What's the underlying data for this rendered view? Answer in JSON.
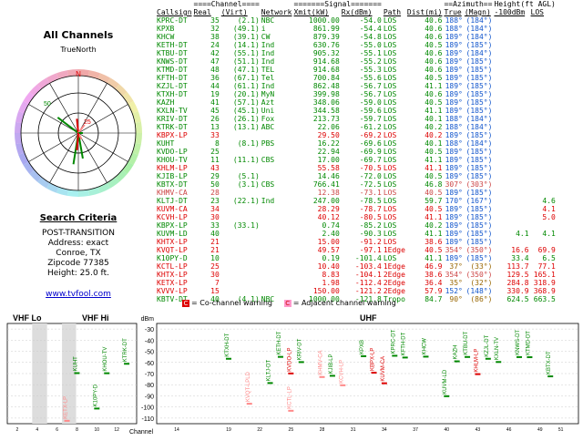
{
  "left": {
    "title": "All Channels",
    "compass_label": "TrueNorth",
    "north": "N",
    "ring_labels": [
      "50",
      "25"
    ],
    "search_title": "Search Criteria",
    "criteria": [
      "POST-TRANSITION",
      "Address: exact",
      "Conroe, TX",
      "Zipcode 77385",
      "Height: 25.0 ft."
    ],
    "link": "www.tvfool.com"
  },
  "table": {
    "group_headers": [
      "====Channel====",
      "=======Signal=======",
      "==Azimuth==",
      "Height(ft AGL)"
    ],
    "columns": [
      "Callsign",
      "Real",
      "(Virt)",
      "Network",
      "Xmit(kW)",
      "Rx(dBm)",
      "Path",
      "Dist(mi)",
      "True",
      "(Magn)",
      "-100dBm",
      "LOS"
    ],
    "rows": [
      {
        "c": "KPRC-DT",
        "r": "35",
        "v": "(2.1)",
        "n": "NBC",
        "x": "1000.00",
        "rx": "-54.0",
        "p": "LOS",
        "d": "40.6",
        "t": "188°",
        "m": "(184°)",
        "h1": "",
        "h2": "",
        "cls": "g"
      },
      {
        "c": "KPXB",
        "r": "32",
        "v": "(49.1)",
        "n": "i",
        "x": "861.99",
        "rx": "-54.4",
        "p": "LOS",
        "d": "40.6",
        "t": "188°",
        "m": "(184°)",
        "h1": "",
        "h2": "",
        "cls": "g"
      },
      {
        "c": "KHCW",
        "r": "38",
        "v": "(39.1)",
        "n": "CW",
        "x": "879.39",
        "rx": "-54.8",
        "p": "LOS",
        "d": "40.6",
        "t": "189°",
        "m": "(184°)",
        "h1": "",
        "h2": "",
        "cls": "g"
      },
      {
        "c": "KETH-DT",
        "r": "24",
        "v": "(14.1)",
        "n": "Ind",
        "x": "630.76",
        "rx": "-55.0",
        "p": "LOS",
        "d": "40.5",
        "t": "189°",
        "m": "(185°)",
        "h1": "",
        "h2": "",
        "cls": "g"
      },
      {
        "c": "KTBU-DT",
        "r": "42",
        "v": "(55.1)",
        "n": "Ind",
        "x": "905.32",
        "rx": "-55.1",
        "p": "LOS",
        "d": "40.6",
        "t": "189°",
        "m": "(184°)",
        "h1": "",
        "h2": "",
        "cls": "g"
      },
      {
        "c": "KNWS-DT",
        "r": "47",
        "v": "(51.1)",
        "n": "Ind",
        "x": "914.68",
        "rx": "-55.2",
        "p": "LOS",
        "d": "40.6",
        "t": "189°",
        "m": "(185°)",
        "h1": "",
        "h2": "",
        "cls": "g"
      },
      {
        "c": "KTMD-DT",
        "r": "48",
        "v": "(47.1)",
        "n": "TEL",
        "x": "914.68",
        "rx": "-55.3",
        "p": "LOS",
        "d": "40.6",
        "t": "189°",
        "m": "(185°)",
        "h1": "",
        "h2": "",
        "cls": "g"
      },
      {
        "c": "KFTH-DT",
        "r": "36",
        "v": "(67.1)",
        "n": "Tel",
        "x": "700.84",
        "rx": "-55.6",
        "p": "LOS",
        "d": "40.5",
        "t": "189°",
        "m": "(185°)",
        "h1": "",
        "h2": "",
        "cls": "g"
      },
      {
        "c": "KZJL-DT",
        "r": "44",
        "v": "(61.1)",
        "n": "Ind",
        "x": "862.48",
        "rx": "-56.7",
        "p": "LOS",
        "d": "41.1",
        "t": "189°",
        "m": "(185°)",
        "h1": "",
        "h2": "",
        "cls": "g"
      },
      {
        "c": "KTXH-DT",
        "r": "19",
        "v": "(20.1)",
        "n": "MyN",
        "x": "399.98",
        "rx": "-56.7",
        "p": "LOS",
        "d": "40.6",
        "t": "189°",
        "m": "(185°)",
        "h1": "",
        "h2": "",
        "cls": "g"
      },
      {
        "c": "KAZH",
        "r": "41",
        "v": "(57.1)",
        "n": "Azt",
        "x": "348.06",
        "rx": "-59.0",
        "p": "LOS",
        "d": "40.5",
        "t": "189°",
        "m": "(185°)",
        "h1": "",
        "h2": "",
        "cls": "g"
      },
      {
        "c": "KXLN-TV",
        "r": "45",
        "v": "(45.1)",
        "n": "Uni",
        "x": "344.58",
        "rx": "-59.6",
        "p": "LOS",
        "d": "41.1",
        "t": "189°",
        "m": "(185°)",
        "h1": "",
        "h2": "",
        "cls": "g"
      },
      {
        "c": "KRIV-DT",
        "r": "26",
        "v": "(26.1)",
        "n": "Fox",
        "x": "213.73",
        "rx": "-59.7",
        "p": "LOS",
        "d": "40.1",
        "t": "188°",
        "m": "(184°)",
        "h1": "",
        "h2": "",
        "cls": "g"
      },
      {
        "c": "KTRK-DT",
        "r": "13",
        "v": "(13.1)",
        "n": "ABC",
        "x": "22.06",
        "rx": "-61.2",
        "p": "LOS",
        "d": "40.2",
        "t": "188°",
        "m": "(184°)",
        "h1": "",
        "h2": "",
        "cls": "g"
      },
      {
        "c": "KBPX-LP",
        "r": "33",
        "v": "",
        "n": "",
        "x": "29.50",
        "rx": "-69.2",
        "p": "LOS",
        "d": "40.2",
        "t": "189°",
        "m": "(185°)",
        "h1": "",
        "h2": "",
        "cls": "rd"
      },
      {
        "c": "KUHT",
        "r": "8",
        "v": "(8.1)",
        "n": "PBS",
        "x": "16.22",
        "rx": "-69.6",
        "p": "LOS",
        "d": "40.1",
        "t": "188°",
        "m": "(184°)",
        "h1": "",
        "h2": "",
        "cls": "g"
      },
      {
        "c": "KVDO-LP",
        "r": "25",
        "v": "",
        "n": "",
        "x": "22.94",
        "rx": "-69.9",
        "p": "LOS",
        "d": "40.5",
        "t": "189°",
        "m": "(185°)",
        "h1": "",
        "h2": "",
        "cls": "g"
      },
      {
        "c": "KHOU-TV",
        "r": "11",
        "v": "(11.1)",
        "n": "CBS",
        "x": "17.00",
        "rx": "-69.7",
        "p": "LOS",
        "d": "41.1",
        "t": "189°",
        "m": "(185°)",
        "h1": "",
        "h2": "",
        "cls": "g"
      },
      {
        "c": "KHLM-LP",
        "r": "43",
        "v": "",
        "n": "",
        "x": "55.58",
        "rx": "-70.5",
        "p": "LOS",
        "d": "41.1",
        "t": "189°",
        "m": "(185°)",
        "h1": "",
        "h2": "",
        "cls": "rd"
      },
      {
        "c": "KJIB-LP",
        "r": "29",
        "v": "(5.1)",
        "n": "",
        "x": "14.46",
        "rx": "-72.0",
        "p": "LOS",
        "d": "40.5",
        "t": "189°",
        "m": "(185°)",
        "h1": "",
        "h2": "",
        "cls": "g"
      },
      {
        "c": "KBTX-DT",
        "r": "50",
        "v": "(3.1)",
        "n": "CBS",
        "x": "766.41",
        "rx": "-72.5",
        "p": "LOS",
        "d": "46.8",
        "t": "307°",
        "m": "(303°)",
        "h1": "",
        "h2": "",
        "cls": "g",
        "az": "pk"
      },
      {
        "c": "KHMV-CA",
        "r": "28",
        "v": "",
        "n": "",
        "x": "12.38",
        "rx": "-73.1",
        "p": "LOS",
        "d": "40.5",
        "t": "189°",
        "m": "(185°)",
        "h1": "",
        "h2": "",
        "cls": "pk"
      },
      {
        "c": "KLTJ-DT",
        "r": "23",
        "v": "(22.1)",
        "n": "Ind",
        "x": "247.00",
        "rx": "-78.5",
        "p": "LOS",
        "d": "59.7",
        "t": "170°",
        "m": "(167°)",
        "h1": "",
        "h2": "4.6",
        "cls": "g"
      },
      {
        "c": "KUVM-CA",
        "r": "34",
        "v": "",
        "n": "",
        "x": "28.29",
        "rx": "-78.7",
        "p": "LOS",
        "d": "40.5",
        "t": "189°",
        "m": "(185°)",
        "h1": "",
        "h2": "4.1",
        "cls": "rd",
        "flag": "C"
      },
      {
        "c": "KCVH-LP",
        "r": "30",
        "v": "",
        "n": "",
        "x": "40.12",
        "rx": "-80.5",
        "p": "LOS",
        "d": "41.1",
        "t": "189°",
        "m": "(185°)",
        "h1": "",
        "h2": "5.0",
        "cls": "rd",
        "flag": "C"
      },
      {
        "c": "KBPX-LP",
        "r": "33",
        "v": "(33.1)",
        "n": "",
        "x": "0.74",
        "rx": "-85.2",
        "p": "LOS",
        "d": "40.2",
        "t": "189°",
        "m": "(185°)",
        "h1": "",
        "h2": "",
        "cls": "g"
      },
      {
        "c": "KUVM-LD",
        "r": "40",
        "v": "",
        "n": "",
        "x": "2.40",
        "rx": "-90.3",
        "p": "LOS",
        "d": "41.1",
        "t": "189°",
        "m": "(185°)",
        "h1": "4.1",
        "h2": "4.1",
        "cls": "g"
      },
      {
        "c": "KHTX-LP",
        "r": "21",
        "v": "",
        "n": "",
        "x": "15.00",
        "rx": "-91.2",
        "p": "LOS",
        "d": "38.6",
        "t": "189°",
        "m": "(185°)",
        "h1": "",
        "h2": "",
        "cls": "rd",
        "flag": "C"
      },
      {
        "c": "KVQT-LP",
        "r": "21",
        "v": "",
        "n": "",
        "x": "49.57",
        "rx": "-97.1",
        "p": "1Edge",
        "d": "40.5",
        "t": "354°",
        "m": "(350°)",
        "h1": "16.6",
        "h2": "69.9",
        "cls": "rd",
        "flag": "C",
        "az": "pk"
      },
      {
        "c": "K10PY-D",
        "r": "10",
        "v": "",
        "n": "",
        "x": "0.19",
        "rx": "-101.4",
        "p": "LOS",
        "d": "41.1",
        "t": "189°",
        "m": "(185°)",
        "h1": "33.4",
        "h2": "6.5",
        "cls": "g"
      },
      {
        "c": "KCTL-LP",
        "r": "25",
        "v": "",
        "n": "",
        "x": "10.40",
        "rx": "-103.4",
        "p": "1Edge",
        "d": "46.9",
        "t": "37°",
        "m": "(33°)",
        "h1": "113.7",
        "h2": "77.1",
        "cls": "rd",
        "flag": "C",
        "az": "brn"
      },
      {
        "c": "KHTX-LP",
        "r": "30",
        "v": "",
        "n": "",
        "x": "8.83",
        "rx": "-104.1",
        "p": "2Edge",
        "d": "38.6",
        "t": "354°",
        "m": "(350°)",
        "h1": "129.5",
        "h2": "165.1",
        "cls": "rd",
        "flag": "C",
        "az": "pk"
      },
      {
        "c": "KETX-LP",
        "r": "7",
        "v": "",
        "n": "",
        "x": "1.98",
        "rx": "-112.4",
        "p": "2Edge",
        "d": "36.4",
        "t": "35°",
        "m": "(32°)",
        "h1": "284.8",
        "h2": "318.9",
        "cls": "rd",
        "flag": "C",
        "az": "brn"
      },
      {
        "c": "KVVV-LP",
        "r": "15",
        "v": "",
        "n": "",
        "x": "150.00",
        "rx": "-121.2",
        "p": "2Edge",
        "d": "57.9",
        "t": "152°",
        "m": "(148°)",
        "h1": "330.9",
        "h2": "368.9",
        "cls": "rd",
        "flag": "C"
      },
      {
        "c": "KBTV-DT",
        "r": "40",
        "v": "(4.1)",
        "n": "NBC",
        "x": "1000.00",
        "rx": "-121.8",
        "p": "Tropo",
        "d": "84.7",
        "t": "90°",
        "m": "(86°)",
        "h1": "624.5",
        "h2": "663.5",
        "cls": "g",
        "az": "brn"
      }
    ]
  },
  "legend": {
    "co": "= Co-channel warning",
    "adj": "= Adjacent channel warning",
    "co_box": "C",
    "adj_box": "C"
  },
  "bottom": {
    "vhf_lo": "VHF Lo",
    "vhf_hi": "VHF Hi",
    "uhf": "UHF",
    "dbm_label": "dBm",
    "channel_label": "Channel",
    "dbm_ticks": [
      "-30",
      "-40",
      "-50",
      "-60",
      "-70",
      "-80",
      "-90",
      "-100",
      "-110"
    ],
    "vhf_ticks": [
      "2",
      "4",
      "6",
      "8",
      "10",
      "12"
    ],
    "uhf_ticks": [
      "14",
      "19",
      "22",
      "25",
      "28",
      "31",
      "34",
      "37",
      "40",
      "43",
      "46",
      "49",
      "51"
    ],
    "bars": [
      {
        "label": "KETX-LP",
        "ch": 7,
        "dbm": -112.4,
        "color": "#f88",
        "band": "vhf"
      },
      {
        "label": "KUHT",
        "ch": 8,
        "dbm": -69.6,
        "color": "#080",
        "band": "vhf"
      },
      {
        "label": "K10PY-D",
        "ch": 10,
        "dbm": -101.4,
        "color": "#080",
        "band": "vhf"
      },
      {
        "label": "KHOU-TV",
        "ch": 11,
        "dbm": -69.7,
        "color": "#080",
        "band": "vhf"
      },
      {
        "label": "KTRK-DT",
        "ch": 13,
        "dbm": -61.2,
        "color": "#080",
        "band": "vhf"
      },
      {
        "label": "KTXH-DT",
        "ch": 19,
        "dbm": -56.7,
        "color": "#080",
        "band": "uhf"
      },
      {
        "label": "KVQT-LPLD",
        "ch": 21,
        "dbm": -97.1,
        "color": "#f88",
        "band": "uhf"
      },
      {
        "label": "KLTJ-DT",
        "ch": 23,
        "dbm": -78.5,
        "color": "#080",
        "band": "uhf"
      },
      {
        "label": "KETH-DT",
        "ch": 24,
        "dbm": -55.0,
        "color": "#080",
        "band": "uhf"
      },
      {
        "label": "KVDO-LP",
        "ch": 25,
        "dbm": -69.9,
        "color": "#d00",
        "band": "uhf"
      },
      {
        "label": "KCTL-LP",
        "ch": 25,
        "dbm": -103.4,
        "color": "#f88",
        "band": "uhf"
      },
      {
        "label": "KRIV-DT",
        "ch": 26,
        "dbm": -59.7,
        "color": "#080",
        "band": "uhf"
      },
      {
        "label": "KHMV-CA",
        "ch": 28,
        "dbm": -73.1,
        "color": "#f88",
        "band": "uhf"
      },
      {
        "label": "KJIB-LP",
        "ch": 29,
        "dbm": -72.0,
        "color": "#080",
        "band": "uhf"
      },
      {
        "label": "KCVH-LP",
        "ch": 30,
        "dbm": -80.5,
        "color": "#f88",
        "band": "uhf"
      },
      {
        "label": "KPXB",
        "ch": 32,
        "dbm": -54.4,
        "color": "#080",
        "band": "uhf"
      },
      {
        "label": "KBPX-LP",
        "ch": 33,
        "dbm": -69.2,
        "color": "#d00",
        "band": "uhf"
      },
      {
        "label": "KUVM-CA",
        "ch": 34,
        "dbm": -78.7,
        "color": "#d00",
        "band": "uhf"
      },
      {
        "label": "KPRC-DT",
        "ch": 35,
        "dbm": -54.0,
        "color": "#080",
        "band": "uhf"
      },
      {
        "label": "KFTH-DT",
        "ch": 36,
        "dbm": -55.6,
        "color": "#080",
        "band": "uhf"
      },
      {
        "label": "KHCW",
        "ch": 38,
        "dbm": -54.8,
        "color": "#080",
        "band": "uhf"
      },
      {
        "label": "KUVM-LD",
        "ch": 40,
        "dbm": -90.3,
        "color": "#080",
        "band": "uhf"
      },
      {
        "label": "KAZH",
        "ch": 41,
        "dbm": -59.0,
        "color": "#080",
        "band": "uhf"
      },
      {
        "label": "KTBU-DT",
        "ch": 42,
        "dbm": -55.1,
        "color": "#080",
        "band": "uhf"
      },
      {
        "label": "KHLM-LP",
        "ch": 43,
        "dbm": -70.5,
        "color": "#d00",
        "band": "uhf"
      },
      {
        "label": "KZJL-DT",
        "ch": 44,
        "dbm": -56.7,
        "color": "#080",
        "band": "uhf"
      },
      {
        "label": "KXLN-TV",
        "ch": 45,
        "dbm": -59.6,
        "color": "#080",
        "band": "uhf"
      },
      {
        "label": "KNWS-DT",
        "ch": 47,
        "dbm": -55.2,
        "color": "#080",
        "band": "uhf"
      },
      {
        "label": "KTMD-DT",
        "ch": 48,
        "dbm": -55.3,
        "color": "#080",
        "band": "uhf"
      },
      {
        "label": "KBTX-DT",
        "ch": 50,
        "dbm": -72.5,
        "color": "#080",
        "band": "uhf"
      }
    ]
  },
  "compass": {
    "spokes": [
      {
        "az": 189,
        "len": 0.55,
        "color": "#080"
      },
      {
        "az": 170,
        "len": 0.45,
        "color": "#080"
      },
      {
        "az": 307,
        "len": 0.45,
        "color": "#080"
      },
      {
        "az": 354,
        "len": 0.25,
        "color": "#d00"
      },
      {
        "az": 37,
        "len": 0.18,
        "color": "#f88"
      },
      {
        "az": 152,
        "len": 0.12,
        "color": "#f88"
      },
      {
        "az": 90,
        "len": 0.08,
        "color": "#080"
      },
      {
        "az": 185,
        "len": 0.3,
        "color": "#d00"
      }
    ]
  }
}
